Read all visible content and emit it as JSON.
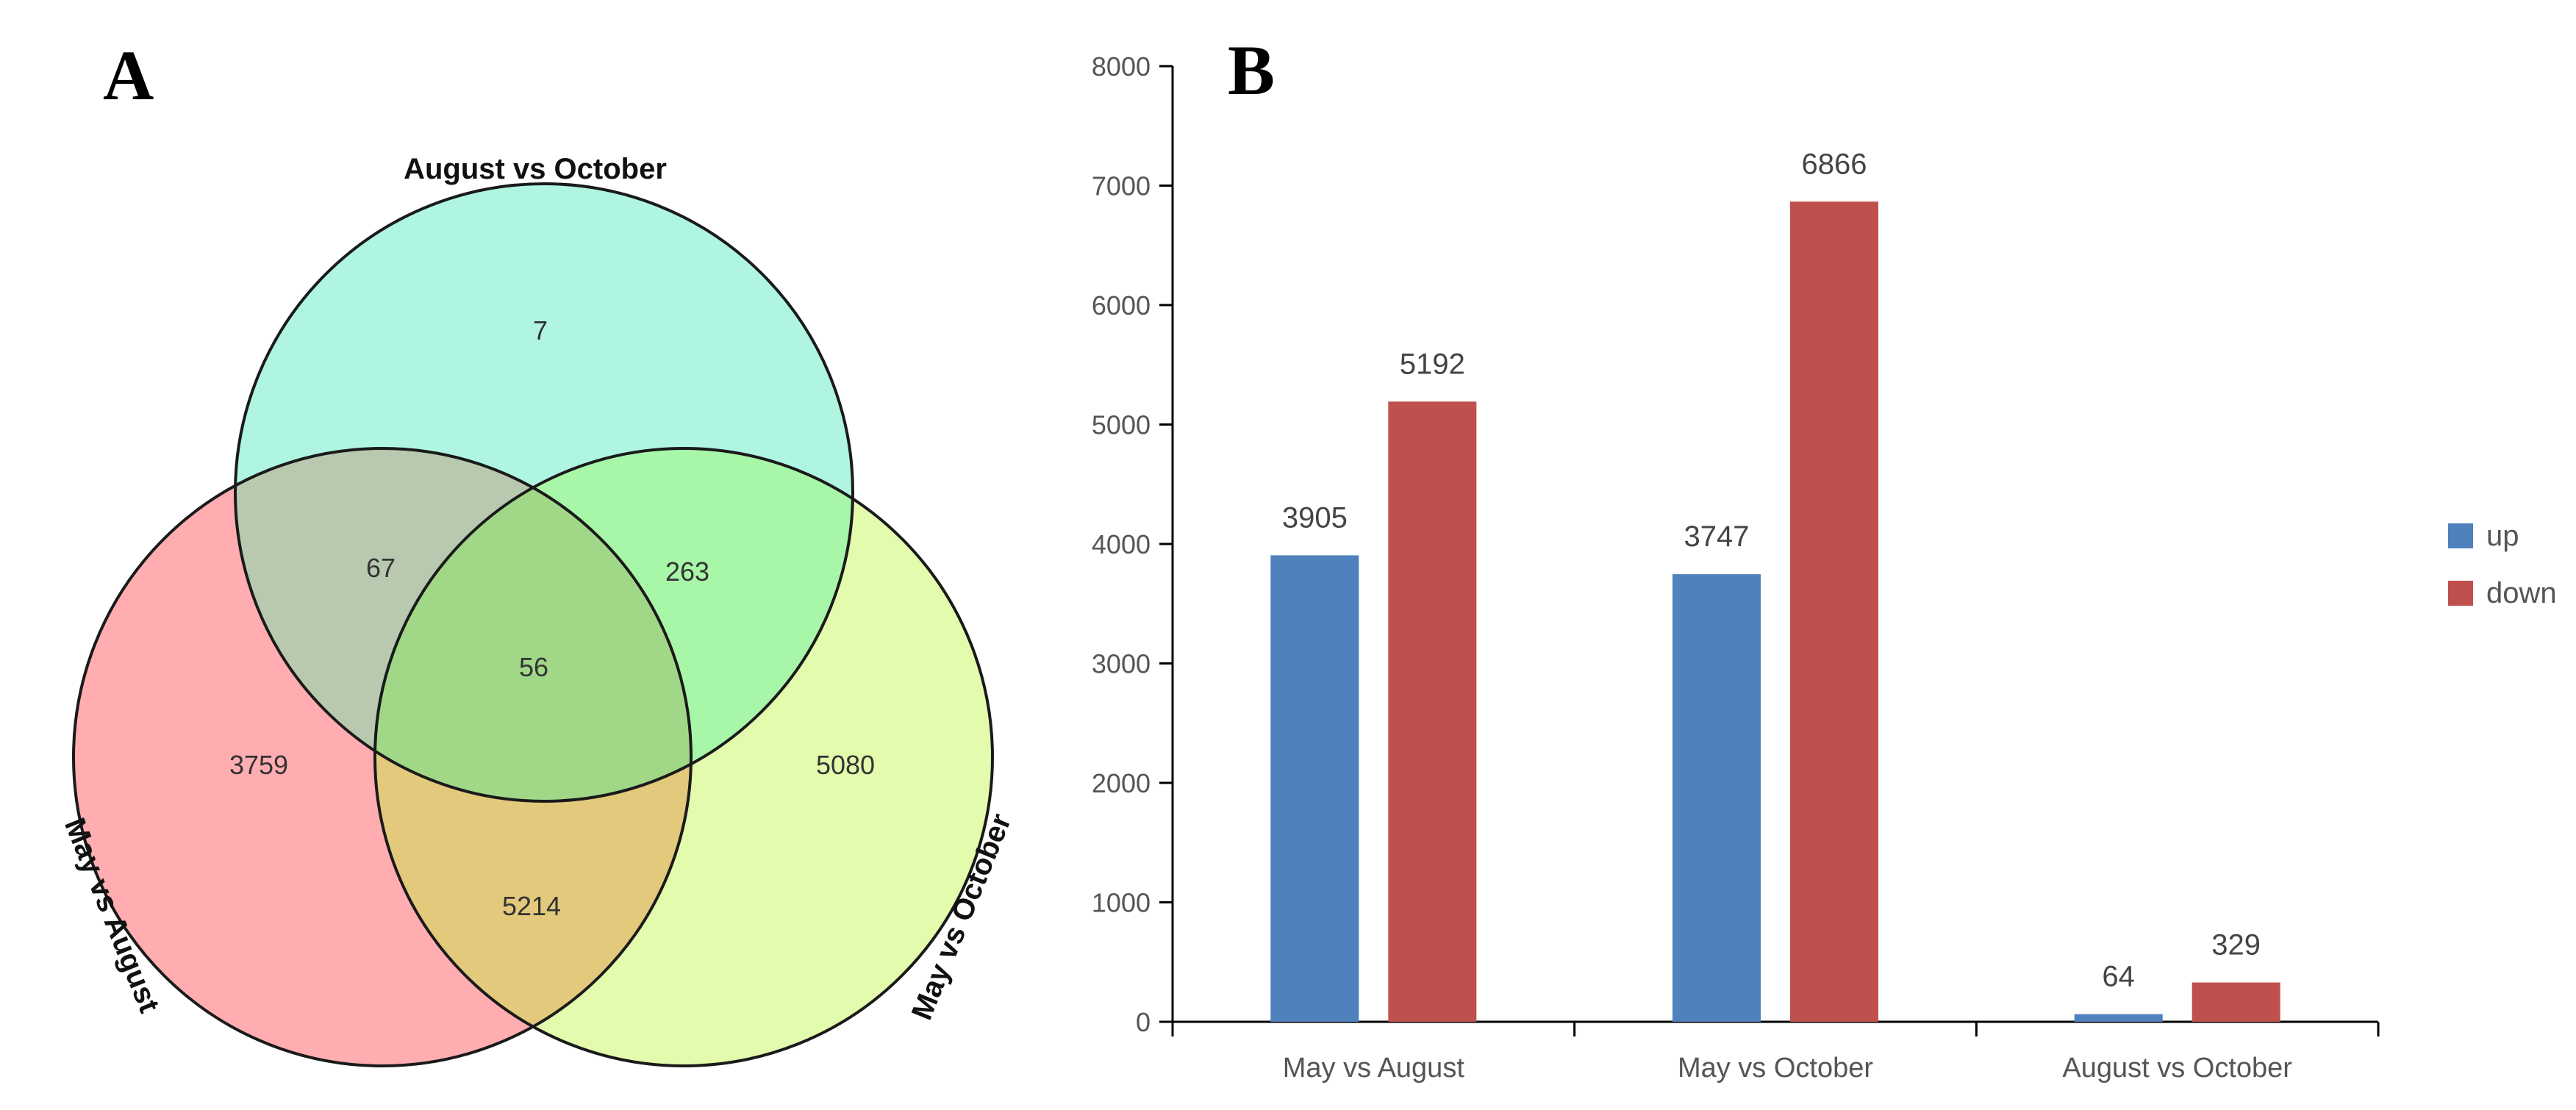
{
  "panels": {
    "a": {
      "letter": "A"
    },
    "b": {
      "letter": "B"
    }
  },
  "venn": {
    "sets": [
      {
        "label": "August vs October",
        "color": "#aff5e1"
      },
      {
        "label": "May vs August",
        "color": "#ffadb0"
      },
      {
        "label": "May vs October",
        "color": "#e2fbac"
      }
    ],
    "regions": {
      "aug_oct_only": "7",
      "may_aug_only": "3759",
      "may_oct_only": "5080",
      "augoct_mayaug": "67",
      "augoct_mayoct": "263",
      "mayaug_mayoct": "5214",
      "all_three": "56"
    },
    "overlap_colors": {
      "augoct_mayaug": "#b8c9af",
      "augoct_mayoct": "#a8f6a8",
      "mayaug_mayoct": "#e2c97c",
      "all_three": "#a0d888"
    }
  },
  "chart_data": {
    "type": "bar",
    "title": "",
    "xlabel": "",
    "ylabel": "",
    "categories": [
      "May vs August",
      "May vs October",
      "August vs October"
    ],
    "series": [
      {
        "name": "up",
        "color": "#4f81bd",
        "values": [
          3905,
          3747,
          64
        ]
      },
      {
        "name": "down",
        "color": "#c0504d",
        "values": [
          5192,
          6866,
          329
        ]
      }
    ],
    "ylim": [
      0,
      8000
    ],
    "yticks": [
      0,
      1000,
      2000,
      3000,
      4000,
      5000,
      6000,
      7000,
      8000
    ],
    "grid": false,
    "legend_position": "right"
  }
}
